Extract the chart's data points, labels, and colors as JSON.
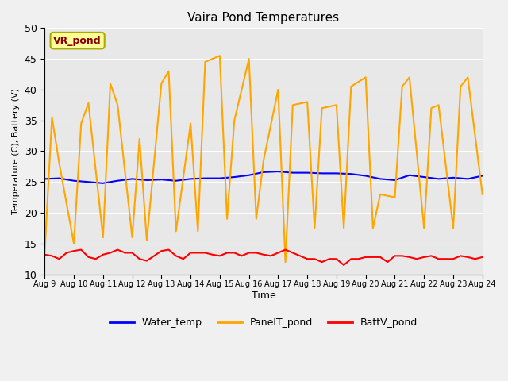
{
  "title": "Vaira Pond Temperatures",
  "xlabel": "Time",
  "ylabel": "Temperature (C), Battery (V)",
  "ylim": [
    10,
    50
  ],
  "site_label": "VR_pond",
  "outer_bg": "#f0f0f0",
  "plot_bg_color": "#e8e8e8",
  "legend_labels": [
    "Water_temp",
    "PanelT_pond",
    "BattV_pond"
  ],
  "legend_colors": [
    "blue",
    "#FFA500",
    "red"
  ],
  "xtick_labels": [
    "Aug 9",
    "Aug 10",
    "Aug 11",
    "Aug 12",
    "Aug 13",
    "Aug 14",
    "Aug 15",
    "Aug 16",
    "Aug 17",
    "Aug 18",
    "Aug 19",
    "Aug 20",
    "Aug 21",
    "Aug 22",
    "Aug 23",
    "Aug 24"
  ],
  "yticks": [
    10,
    15,
    20,
    25,
    30,
    35,
    40,
    45,
    50
  ],
  "water_temp_x": [
    0,
    0.5,
    1,
    1.5,
    2,
    2.5,
    3,
    3.5,
    4,
    4.5,
    5,
    5.5,
    6,
    6.5,
    7,
    7.5,
    8,
    8.5,
    9,
    9.5,
    10,
    10.5,
    11,
    11.5,
    12,
    12.5,
    13,
    13.5,
    14,
    14.5,
    15
  ],
  "water_temp_y": [
    25.5,
    25.6,
    25.2,
    25.0,
    24.8,
    25.2,
    25.5,
    25.3,
    25.4,
    25.2,
    25.5,
    25.6,
    25.6,
    25.8,
    26.1,
    26.6,
    26.7,
    26.5,
    26.5,
    26.4,
    26.4,
    26.3,
    26.0,
    25.5,
    25.3,
    26.1,
    25.8,
    25.5,
    25.7,
    25.5,
    26.0
  ],
  "panel_temp_x": [
    0,
    0.25,
    0.5,
    1,
    1.25,
    1.5,
    2,
    2.25,
    2.5,
    3,
    3.25,
    3.5,
    4,
    4.25,
    4.5,
    5,
    5.25,
    5.5,
    6,
    6.25,
    6.5,
    7,
    7.25,
    7.5,
    8,
    8.25,
    8.5,
    9,
    9.25,
    9.5,
    10,
    10.25,
    10.5,
    11,
    11.25,
    11.5,
    12,
    12.25,
    12.5,
    13,
    13.25,
    13.5,
    14,
    14.25,
    14.5,
    15
  ],
  "panel_temp_y": [
    13.5,
    35.5,
    28.0,
    15.0,
    34.5,
    37.8,
    16.0,
    41.0,
    37.5,
    16.0,
    32.0,
    15.5,
    41.0,
    43.0,
    17.0,
    34.5,
    17.0,
    44.5,
    45.5,
    19.0,
    35.0,
    45.0,
    19.0,
    28.5,
    40.0,
    12.0,
    37.5,
    38.0,
    17.5,
    37.0,
    37.5,
    17.5,
    40.5,
    42.0,
    17.5,
    23.0,
    22.5,
    40.5,
    42.0,
    17.5,
    37.0,
    37.5,
    17.5,
    40.5,
    42.0,
    23.0
  ],
  "batt_temp_x": [
    0,
    0.25,
    0.5,
    0.75,
    1,
    1.25,
    1.5,
    1.75,
    2,
    2.25,
    2.5,
    2.75,
    3,
    3.25,
    3.5,
    3.75,
    4,
    4.25,
    4.5,
    4.75,
    5,
    5.25,
    5.5,
    5.75,
    6,
    6.25,
    6.5,
    6.75,
    7,
    7.25,
    7.5,
    7.75,
    8,
    8.25,
    8.5,
    8.75,
    9,
    9.25,
    9.5,
    9.75,
    10,
    10.25,
    10.5,
    10.75,
    11,
    11.25,
    11.5,
    11.75,
    12,
    12.25,
    12.5,
    12.75,
    13,
    13.25,
    13.5,
    13.75,
    14,
    14.25,
    14.5,
    14.75,
    15
  ],
  "batt_temp_y": [
    13.2,
    13.0,
    12.5,
    13.5,
    13.8,
    14.0,
    12.8,
    12.5,
    13.2,
    13.5,
    14.0,
    13.5,
    13.5,
    12.5,
    12.2,
    13.0,
    13.8,
    14.0,
    13.0,
    12.5,
    13.5,
    13.5,
    13.5,
    13.2,
    13.0,
    13.5,
    13.5,
    13.0,
    13.5,
    13.5,
    13.2,
    13.0,
    13.5,
    14.0,
    13.5,
    13.0,
    12.5,
    12.5,
    12.0,
    12.5,
    12.5,
    11.5,
    12.5,
    12.5,
    12.8,
    12.8,
    12.8,
    12.0,
    13.0,
    13.0,
    12.8,
    12.5,
    12.8,
    13.0,
    12.5,
    12.5,
    12.5,
    13.0,
    12.8,
    12.5,
    12.8
  ]
}
